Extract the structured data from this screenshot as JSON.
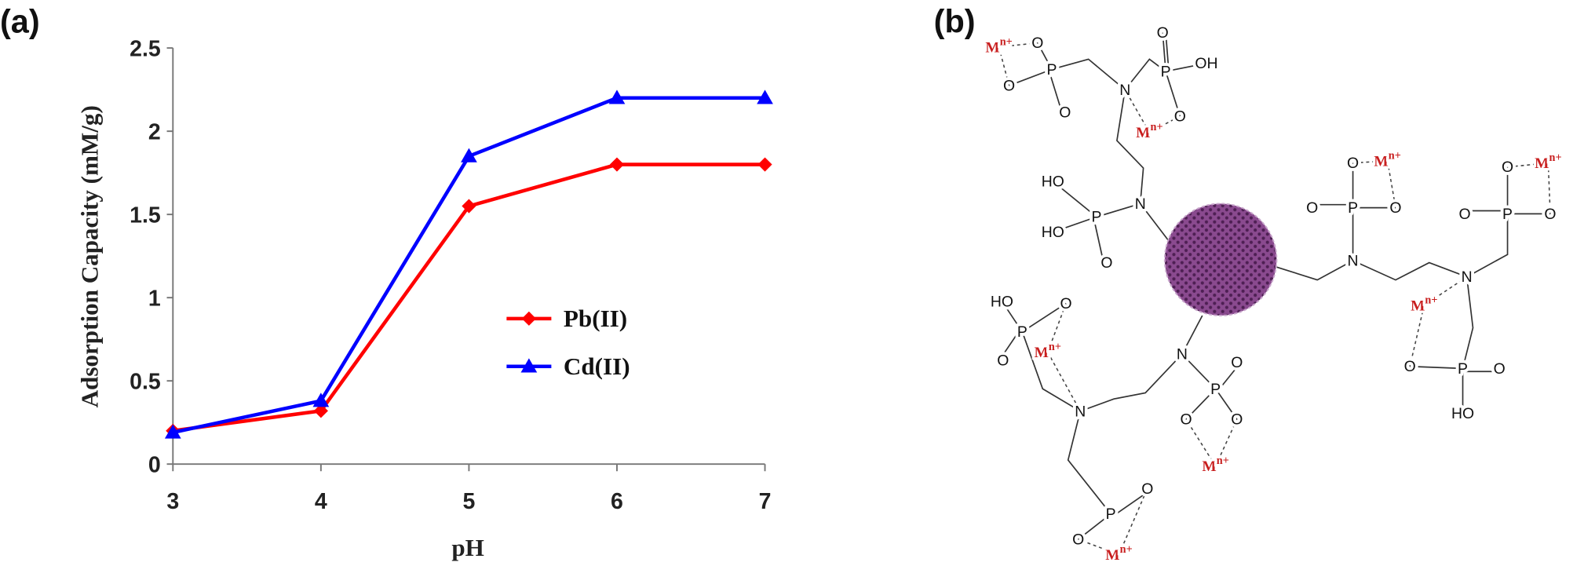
{
  "chart_data": {
    "type": "line",
    "panel_label": "(a)",
    "x_label": "pH",
    "y_label": "Adsorption Capacity (mM/g)",
    "x": [
      3,
      4,
      5,
      6,
      7
    ],
    "series": [
      {
        "name": "Pb(II)",
        "color": "#ff0000",
        "marker": "diamond",
        "values": [
          0.2,
          0.32,
          1.55,
          1.8,
          1.8
        ]
      },
      {
        "name": "Cd(II)",
        "color": "#0000ff",
        "marker": "triangle",
        "values": [
          0.19,
          0.38,
          1.85,
          2.2,
          2.2
        ]
      }
    ],
    "xlim": [
      3,
      7
    ],
    "xticks": [
      3,
      4,
      5,
      6,
      7
    ],
    "ylim": [
      0,
      2.5
    ],
    "yticks": [
      0,
      0.5,
      1,
      1.5,
      2,
      2.5
    ],
    "grid": false,
    "legend": "right"
  },
  "diagram": {
    "panel_label": "(b)",
    "nodes": [
      {
        "label": "M",
        "charge": "n+"
      },
      {
        "label": "O"
      },
      {
        "label": "O"
      },
      {
        "label": "P"
      },
      {
        "label": "O"
      },
      {
        "label": "N"
      },
      {
        "label": "O"
      },
      {
        "label": "P"
      },
      {
        "label": "OH"
      },
      {
        "label": "O"
      },
      {
        "label": "M",
        "charge": "n+"
      },
      {
        "label": "N"
      },
      {
        "label": "HO"
      },
      {
        "label": "HO"
      },
      {
        "label": "P"
      },
      {
        "label": "O"
      },
      {
        "label": "N"
      },
      {
        "label": "O"
      },
      {
        "label": "M",
        "charge": "n+"
      },
      {
        "label": "O"
      },
      {
        "label": "P"
      },
      {
        "label": "O"
      },
      {
        "label": "N"
      },
      {
        "label": "O"
      },
      {
        "label": "M",
        "charge": "n+"
      },
      {
        "label": "O"
      },
      {
        "label": "P"
      },
      {
        "label": "O"
      },
      {
        "label": "M",
        "charge": "n+"
      },
      {
        "label": "O"
      },
      {
        "label": "P"
      },
      {
        "label": "O"
      },
      {
        "label": "HO"
      },
      {
        "label": "N"
      },
      {
        "label": "O"
      },
      {
        "label": "P"
      },
      {
        "label": "O"
      },
      {
        "label": "O"
      },
      {
        "label": "M",
        "charge": "n+"
      },
      {
        "label": "HO"
      },
      {
        "label": "P"
      },
      {
        "label": "O"
      },
      {
        "label": "O"
      },
      {
        "label": "M",
        "charge": "n+"
      },
      {
        "label": "N"
      },
      {
        "label": "O"
      },
      {
        "label": "P"
      },
      {
        "label": "O"
      },
      {
        "label": "M",
        "charge": "n+"
      }
    ]
  }
}
